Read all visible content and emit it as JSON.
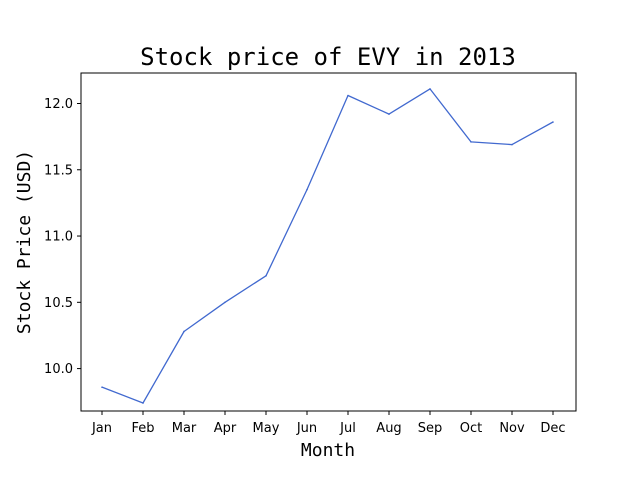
{
  "chart_data": {
    "type": "line",
    "title": "Stock price of EVY in 2013",
    "xlabel": "Month",
    "ylabel": "Stock Price (USD)",
    "categories": [
      "Jan",
      "Feb",
      "Mar",
      "Apr",
      "May",
      "Jun",
      "Jul",
      "Aug",
      "Sep",
      "Oct",
      "Nov",
      "Dec"
    ],
    "series": [
      {
        "values": [
          9.86,
          9.74,
          10.28,
          10.5,
          10.7,
          11.35,
          12.06,
          11.92,
          12.11,
          11.71,
          11.69,
          11.86
        ]
      }
    ],
    "ylim": [
      9.68,
      12.23
    ],
    "yticks": [
      10.0,
      10.5,
      11.0,
      11.5,
      12.0
    ],
    "ytick_labels": [
      "10.0",
      "10.5",
      "11.0",
      "11.5",
      "12.0"
    ],
    "grid": false,
    "colors": {
      "line": "#4169cf"
    }
  }
}
